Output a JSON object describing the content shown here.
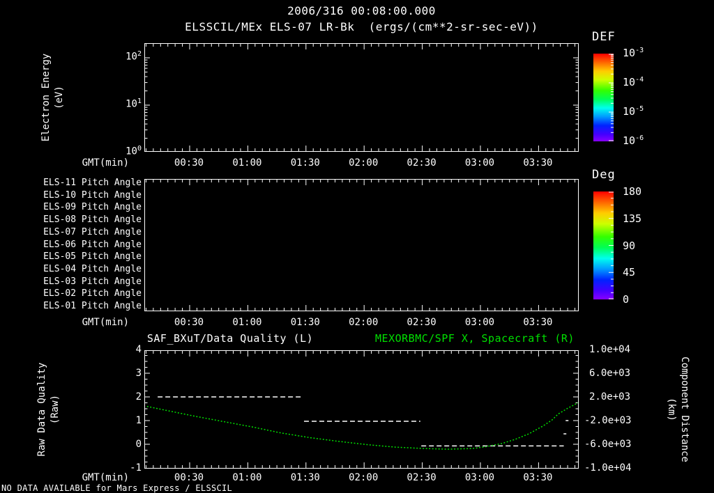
{
  "header": {
    "timestamp": "2006/316 00:08:00.000",
    "title": "ELSSCIL/MEx ELS-07 LR-Bk  (ergs/(cm**2-sr-sec-eV))"
  },
  "colors": {
    "background": "#000000",
    "foreground": "#ffffff",
    "curve_green": "#00e000",
    "title_green": "#00e000"
  },
  "time_axis": {
    "label": "GMT(min)",
    "tick_labels": [
      "00:30",
      "01:00",
      "01:30",
      "02:00",
      "02:30",
      "03:00",
      "03:30"
    ],
    "tick_minutes": [
      30,
      60,
      90,
      120,
      150,
      180,
      210
    ],
    "range_minutes": [
      7,
      231
    ],
    "minor_step_minutes": 3.75
  },
  "panels": {
    "energy": {
      "ylabel_line1": "Electron Energy",
      "ylabel_line2": "(eV)",
      "yticks": [
        {
          "base": "10",
          "exp": "2",
          "decade": 2
        },
        {
          "base": "10",
          "exp": "1",
          "decade": 1
        },
        {
          "base": "10",
          "exp": "0",
          "decade": 0
        }
      ]
    },
    "pitch": {
      "row_labels": [
        "ELS-11 Pitch Angle",
        "ELS-10 Pitch Angle",
        "ELS-09 Pitch Angle",
        "ELS-08 Pitch Angle",
        "ELS-07 Pitch Angle",
        "ELS-06 Pitch Angle",
        "ELS-05 Pitch Angle",
        "ELS-04 Pitch Angle",
        "ELS-03 Pitch Angle",
        "ELS-02 Pitch Angle",
        "ELS-01 Pitch Angle"
      ]
    },
    "quality": {
      "title_left": "SAF_BXuT/Data Quality (L)",
      "title_right": "MEXORBMC/SPF X, Spacecraft (R)",
      "ylabel_line1": "Raw Data Quality",
      "ylabel_line2": "(Raw)",
      "left_ticks": [
        {
          "label": "4",
          "value": 4
        },
        {
          "label": "3",
          "value": 3
        },
        {
          "label": "2",
          "value": 2
        },
        {
          "label": "1",
          "value": 1
        },
        {
          "label": "0",
          "value": 0
        },
        {
          "label": "-1",
          "value": -1
        }
      ],
      "right_label_line1": "Component Distance",
      "right_label_line2": "(km)",
      "right_ticks": [
        {
          "label": "1.0e+04",
          "value": 10000
        },
        {
          "label": "6.0e+03",
          "value": 6000
        },
        {
          "label": "2.0e+03",
          "value": 2000
        },
        {
          "label": "-2.0e+03",
          "value": -2000
        },
        {
          "label": "-6.0e+03",
          "value": -6000
        },
        {
          "label": "-1.0e+04",
          "value": -10000
        }
      ]
    }
  },
  "colorbars": {
    "def": {
      "title": "DEF",
      "scale": "log",
      "ticks": [
        {
          "base": "10",
          "exp": "-3"
        },
        {
          "base": "10",
          "exp": "-4"
        },
        {
          "base": "10",
          "exp": "-5"
        },
        {
          "base": "10",
          "exp": "-6"
        }
      ]
    },
    "deg": {
      "title": "Deg",
      "scale": "linear",
      "ticks": [
        "180",
        "135",
        "90",
        "45",
        "0"
      ]
    }
  },
  "footer": {
    "no_data_text": "NO DATA AVAILABLE for Mars Express / ELSSCIL"
  },
  "chart_data": [
    {
      "type": "heatmap",
      "panel": "energy-spectrogram",
      "title": "ELSSCIL/MEx ELS-07 LR-Bk (ergs/(cm**2-sr-sec-eV))",
      "ylabel": "Electron Energy (eV)",
      "yscale": "log",
      "ylim": [
        1,
        196
      ],
      "xlabel": "GMT(min)",
      "x_ticks_gmt": [
        "00:30",
        "01:00",
        "01:30",
        "02:00",
        "02:30",
        "03:00",
        "03:30"
      ],
      "colorbar": {
        "title": "DEF",
        "scale": "log",
        "tick_values": [
          0.001,
          0.0001,
          1e-05,
          1e-06
        ]
      },
      "values": [],
      "note": "empty panel - no data plotted"
    },
    {
      "type": "heatmap",
      "panel": "pitch-angle-stack",
      "rows": [
        "ELS-11 Pitch Angle",
        "ELS-10 Pitch Angle",
        "ELS-09 Pitch Angle",
        "ELS-08 Pitch Angle",
        "ELS-07 Pitch Angle",
        "ELS-06 Pitch Angle",
        "ELS-05 Pitch Angle",
        "ELS-04 Pitch Angle",
        "ELS-03 Pitch Angle",
        "ELS-02 Pitch Angle",
        "ELS-01 Pitch Angle"
      ],
      "xlabel": "GMT(min)",
      "x_ticks_gmt": [
        "00:30",
        "01:00",
        "01:30",
        "02:00",
        "02:30",
        "03:00",
        "03:30"
      ],
      "colorbar": {
        "title": "Deg",
        "scale": "linear",
        "tick_values": [
          180,
          135,
          90,
          45,
          0
        ]
      },
      "values": [],
      "note": "empty panel - no data plotted"
    },
    {
      "type": "line",
      "panel": "quality-and-distance",
      "xlabel": "GMT(min)",
      "x_range_minutes": [
        7,
        231
      ],
      "ylim_left": [
        -1,
        4
      ],
      "ylabel_left": "Raw Data Quality (Raw)",
      "ylim_right": [
        -10000,
        10000
      ],
      "ylabel_right": "Component Distance (km)",
      "left_series": {
        "name": "SAF_BXuT/Data Quality (L)",
        "style": "white dashed horizontal steps",
        "segments": [
          {
            "x_start_min": 13.5,
            "x_end_min": 88,
            "y_raw": 2.0
          },
          {
            "x_start_min": 89,
            "x_end_min": 149,
            "y_raw": 0.97
          },
          {
            "x_start_min": 149.5,
            "x_end_min": 223,
            "y_raw": -0.07
          }
        ],
        "extra_marks": [
          {
            "x_min": 223.6,
            "y_raw": 0.44
          },
          {
            "x_min": 224.7,
            "y_raw": 1.0
          }
        ]
      },
      "right_series": {
        "name": "MEXORBMC/SPF X, Spacecraft (R)",
        "style": "green dotted curve",
        "x_minutes": [
          8,
          18,
          33,
          48,
          63,
          77,
          92,
          107,
          122,
          136,
          151,
          163,
          176,
          183,
          191,
          198,
          205,
          212,
          217,
          220,
          225,
          231
        ],
        "y_left_axis_units": [
          1.6,
          1.43,
          1.18,
          0.95,
          0.72,
          0.48,
          0.28,
          0.12,
          -0.02,
          -0.12,
          -0.18,
          -0.21,
          -0.18,
          -0.1,
          0.03,
          0.21,
          0.44,
          0.76,
          1.03,
          1.27,
          1.52,
          1.78
        ],
        "y_km": [
          400,
          -280,
          -1280,
          -2200,
          -3120,
          -4080,
          -4880,
          -5520,
          -6080,
          -6480,
          -6720,
          -6840,
          -6720,
          -6400,
          -5880,
          -5160,
          -4240,
          -2960,
          -1880,
          -920,
          80,
          1120
        ]
      }
    }
  ]
}
